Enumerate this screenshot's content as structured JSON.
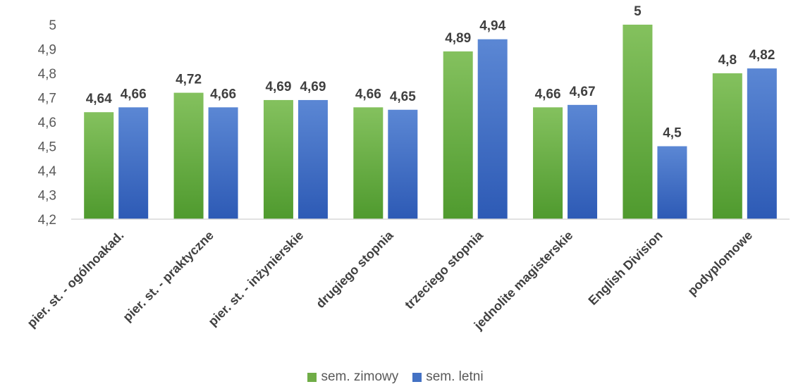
{
  "chart_data": {
    "type": "bar",
    "categories": [
      "pier. st. - ogólnoakad.",
      "pier. st. - praktyczne",
      "pier. st. - inżynierskie",
      "drugiego stopnia",
      "trzeciego stopnia",
      "jednolite magisterskie",
      "English Division",
      "podyplomowe"
    ],
    "series": [
      {
        "name": "sem. zimowy",
        "values": [
          4.64,
          4.72,
          4.69,
          4.66,
          4.89,
          4.66,
          5,
          4.8
        ],
        "labels": [
          "4,64",
          "4,72",
          "4,69",
          "4,66",
          "4,89",
          "4,66",
          "5",
          "4,8"
        ],
        "color": "#70ad47"
      },
      {
        "name": "sem. letni",
        "values": [
          4.66,
          4.66,
          4.69,
          4.65,
          4.94,
          4.67,
          4.5,
          4.82
        ],
        "labels": [
          "4,66",
          "4,66",
          "4,69",
          "4,65",
          "4,94",
          "4,67",
          "4,5",
          "4,82"
        ],
        "color": "#4472c4"
      }
    ],
    "yticks": [
      "4,2",
      "4,3",
      "4,4",
      "4,5",
      "4,6",
      "4,7",
      "4,8",
      "4,9",
      "5"
    ],
    "ylim": [
      4.2,
      5.0
    ],
    "grid": false,
    "legend_position": "bottom"
  }
}
